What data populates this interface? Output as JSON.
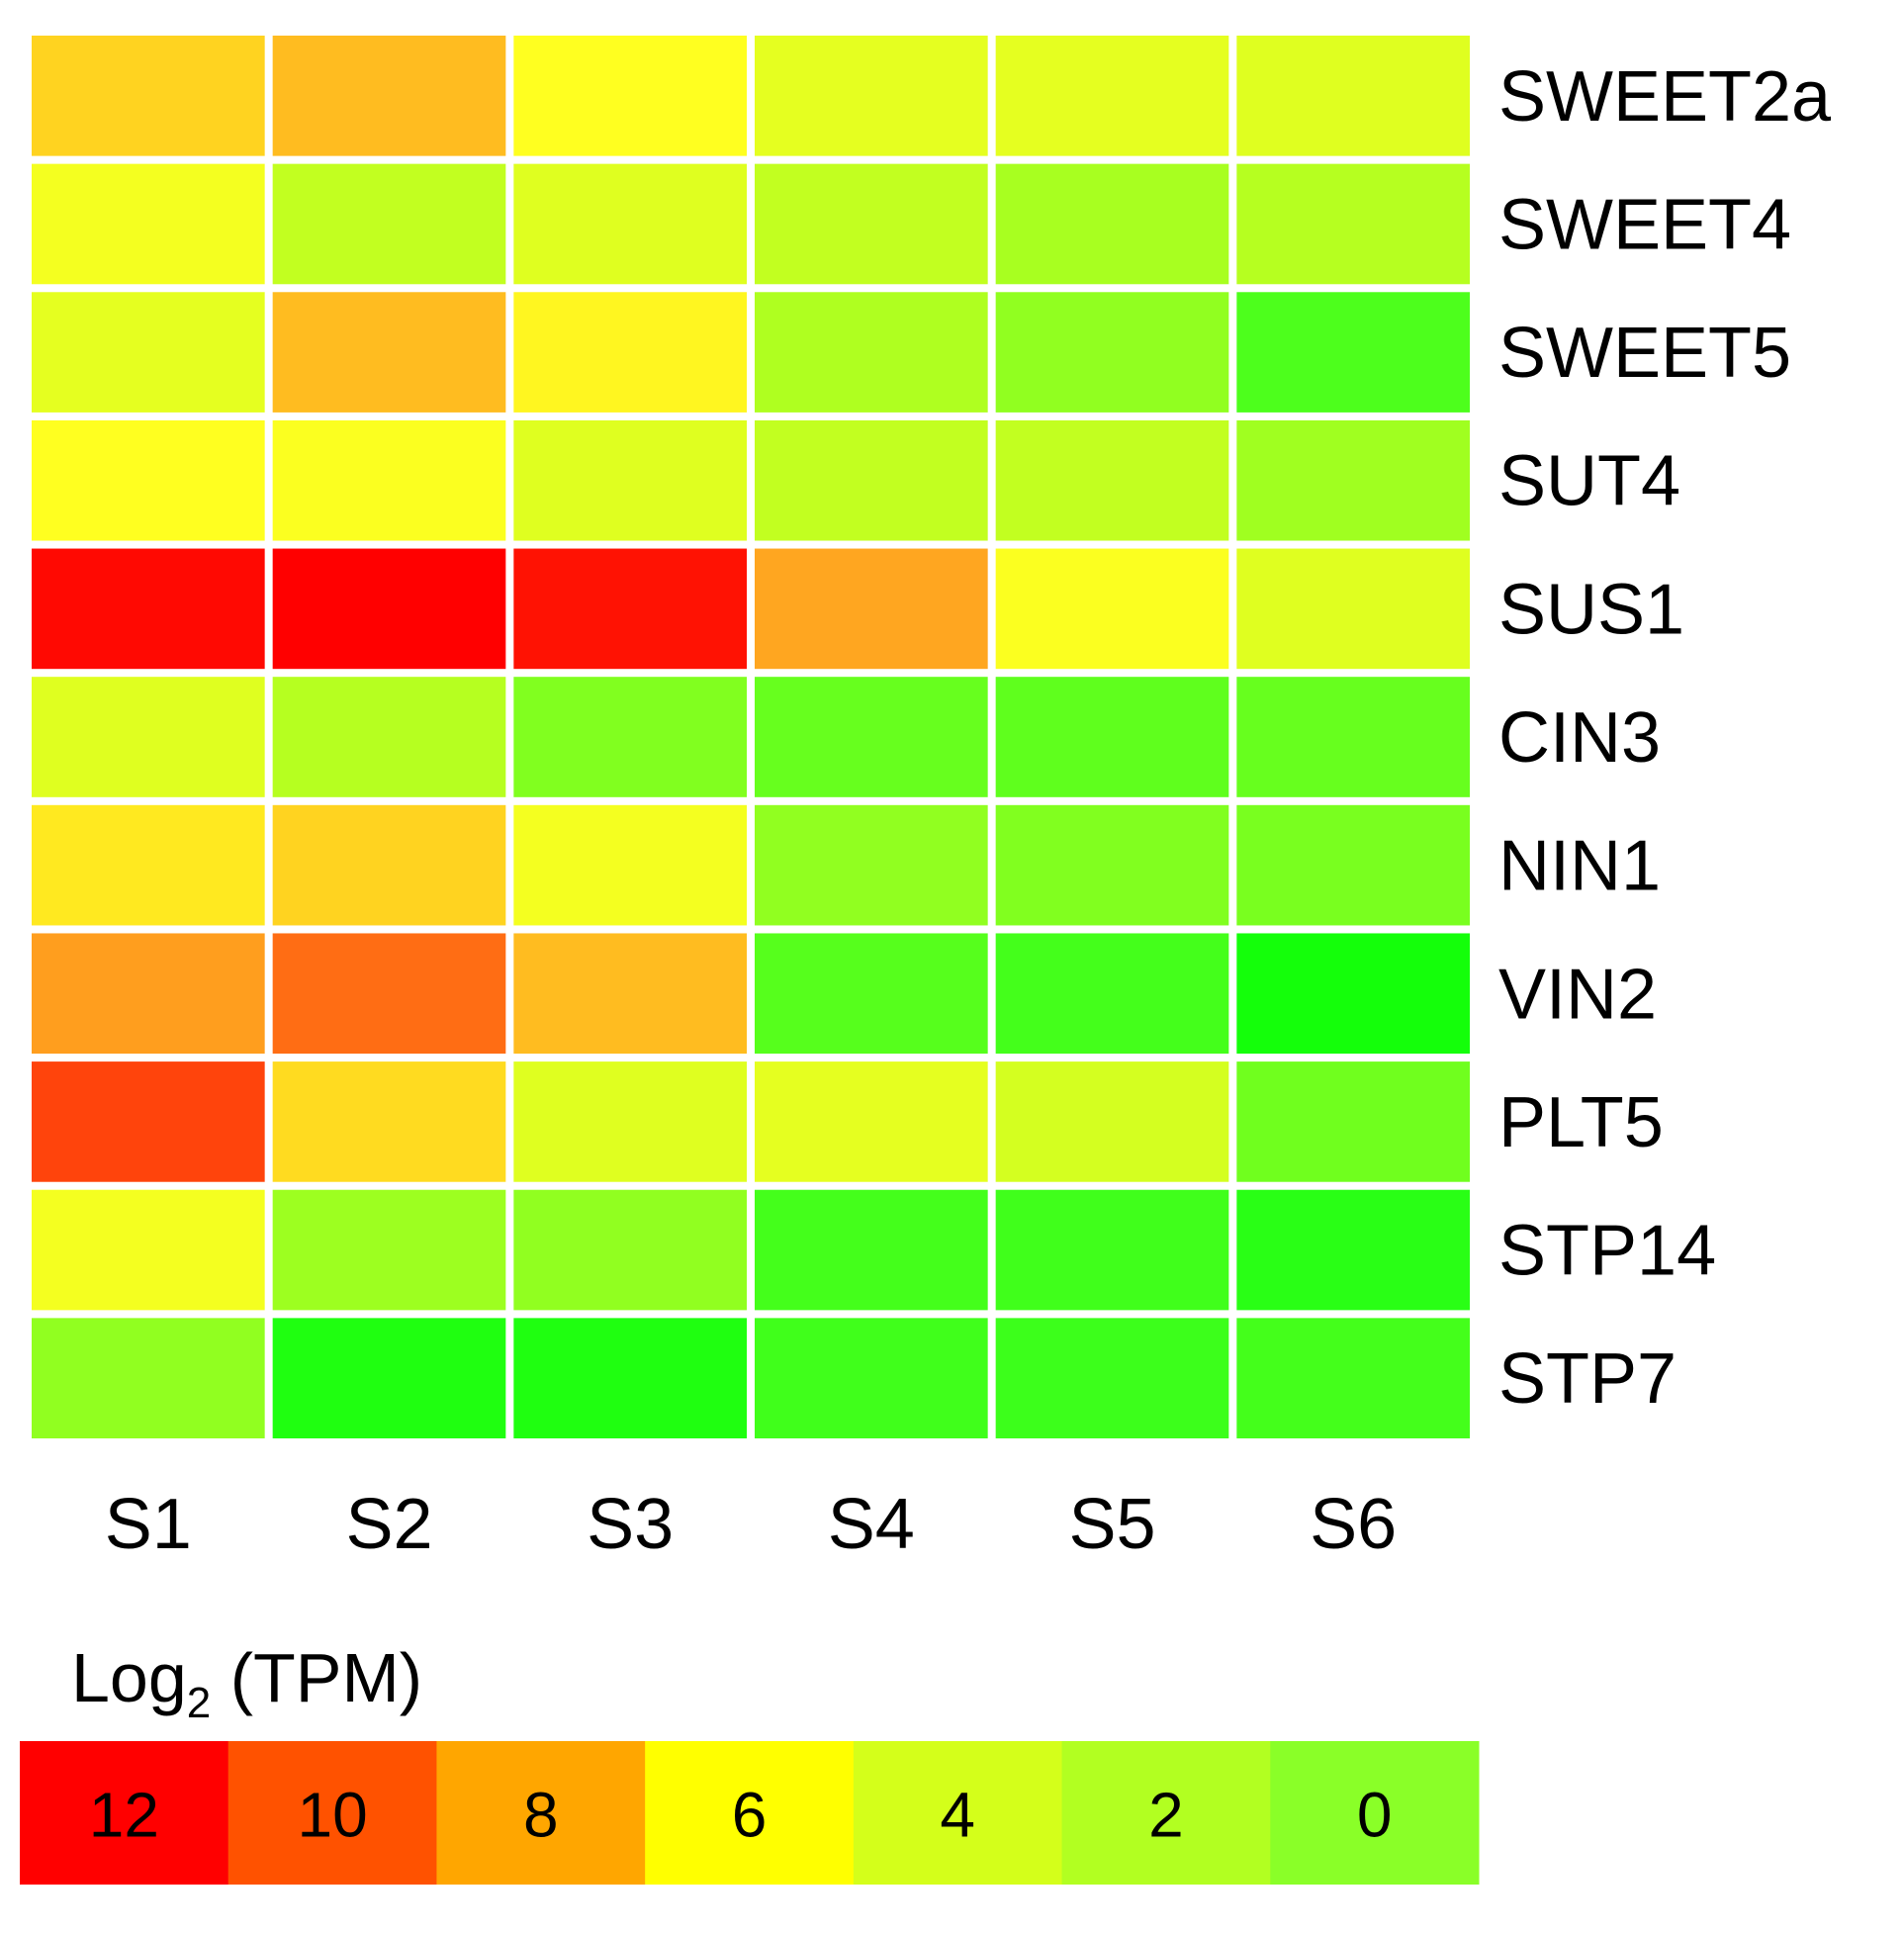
{
  "chart_data": {
    "type": "heatmap",
    "columns": [
      "S1",
      "S2",
      "S3",
      "S4",
      "S5",
      "S6"
    ],
    "rows": [
      "SWEET2a",
      "SWEET4",
      "SWEET5",
      "SUT4",
      "SUS1",
      "CIN3",
      "NIN1",
      "VIN2",
      "PLT5",
      "STP14",
      "STP7"
    ],
    "values": [
      [
        7.0,
        7.5,
        6.0,
        4.8,
        4.8,
        4.5
      ],
      [
        5.5,
        3.5,
        4.5,
        3.5,
        2.8,
        3.2
      ],
      [
        4.8,
        7.5,
        6.2,
        3.0,
        2.2,
        0.6
      ],
      [
        6.0,
        5.8,
        4.5,
        3.5,
        3.5,
        2.6
      ],
      [
        11.8,
        12.0,
        11.6,
        8.0,
        5.8,
        4.5
      ],
      [
        4.5,
        3.2,
        1.8,
        1.2,
        1.0,
        1.2
      ],
      [
        6.5,
        7.0,
        5.5,
        2.2,
        1.8,
        1.6
      ],
      [
        8.2,
        9.5,
        7.5,
        0.8,
        0.4,
        -0.6
      ],
      [
        10.5,
        6.8,
        4.5,
        4.8,
        4.0,
        1.4
      ],
      [
        5.5,
        2.5,
        2.2,
        0.4,
        0.3,
        -0.2
      ],
      [
        2.2,
        -0.4,
        -0.4,
        0.3,
        0.2,
        0.4
      ]
    ],
    "legend_title": "Log",
    "legend_title_sub": "2",
    "legend_title_suffix": " (TPM)",
    "legend_ticks": [
      "12",
      "10",
      "8",
      "6",
      "4",
      "2",
      "0"
    ],
    "legend_values": [
      12,
      10,
      8,
      6,
      4,
      2,
      0
    ],
    "legend_colors": [
      "#ff0000",
      "#ff5200",
      "#ffa600",
      "#ffff00",
      "#d4ff1a",
      "#b2ff21",
      "#8aff28"
    ],
    "scale_stops": [
      {
        "value": 12,
        "color": "#ff0000"
      },
      {
        "value": 10,
        "color": "#ff5a10"
      },
      {
        "value": 8,
        "color": "#ffa620"
      },
      {
        "value": 6,
        "color": "#ffff20"
      },
      {
        "value": 4,
        "color": "#d4ff20"
      },
      {
        "value": 2,
        "color": "#8aff20"
      },
      {
        "value": 0,
        "color": "#33ff1a"
      },
      {
        "value": -1,
        "color": "#00ff00"
      }
    ],
    "cell_border_color": "#ffffff"
  }
}
